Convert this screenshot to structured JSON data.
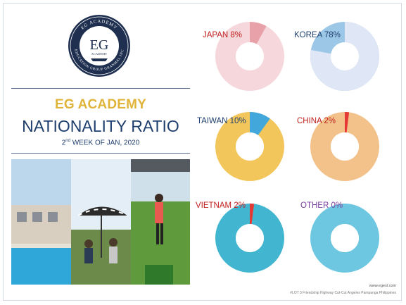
{
  "logo": {
    "ring_top": "EG ACADEMY",
    "ring_bottom": "EDUCATION GROUP GRANMAL INC",
    "center": "EG",
    "center_sub": "ACADEMY"
  },
  "header": {
    "brand": "EG ACADEMY",
    "title": "NATIONALITY RATIO",
    "subtitle_pre": "2",
    "subtitle_sup": "nd",
    "subtitle_post": " WEEK OF JAN, 2020"
  },
  "charts": [
    {
      "label": "JAPAN 8%",
      "value": 8,
      "color": "#c0201f",
      "fill": "#e9a1a9",
      "track": "#f6d7dc"
    },
    {
      "label": "KOREA 78%",
      "value": 78,
      "color": "#1f3f6e",
      "fill": "#dfe6f5",
      "track": "#9cc7e6"
    },
    {
      "label": "TAIWAN 10%",
      "value": 10,
      "color": "#1f3f6e",
      "fill": "#42a8dc",
      "track": "#f2c65a"
    },
    {
      "label": "CHINA 2%",
      "value": 2,
      "color": "#c0201f",
      "fill": "#e53935",
      "track": "#f3c18a"
    },
    {
      "label": "VIETNAM 2%",
      "value": 2,
      "color": "#c0201f",
      "fill": "#e53935",
      "track": "#42b6d1"
    },
    {
      "label": "OTHER 0%",
      "value": 0,
      "color": "#7b3fa0",
      "fill": "#d16c9a",
      "track": "#6ec7e1"
    }
  ],
  "footer": {
    "url": "www.egesl.com",
    "address": "#LOT 3 Friendship Highway Cut-Cut Angeles Pampanga Philippines"
  }
}
